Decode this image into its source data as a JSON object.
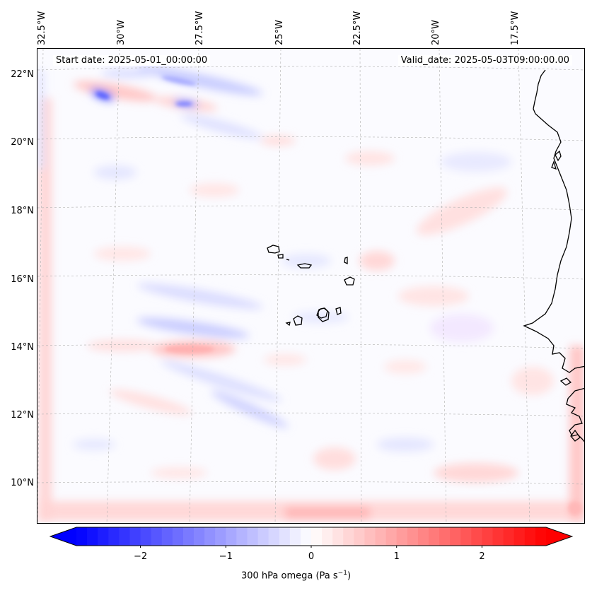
{
  "info": {
    "start_date": "Start date: 2025-05-01_00:00:00",
    "valid_date": "Valid_date: 2025-05-03T09:00:00.00"
  },
  "lon_labels": [
    "32.5°W",
    "30°W",
    "27.5°W",
    "25°W",
    "22.5°W",
    "20°W",
    "17.5°W"
  ],
  "lat_labels": [
    "22°N",
    "20°N",
    "18°N",
    "16°N",
    "14°N",
    "12°N",
    "10°N"
  ],
  "colorbar": {
    "ticks": [
      "−2",
      "−1",
      "0",
      "1",
      "2"
    ],
    "label_main": "300 hPa omega (Pa s",
    "label_sup": "−1",
    "label_end": ")",
    "min": -2.75,
    "max": 2.75,
    "colors": {
      "negative": "#0000ff",
      "zero": "#ffffff",
      "positive": "#ff0000"
    }
  },
  "map": {
    "extent": {
      "lon_min": -32.6,
      "lon_max": -16.5,
      "lat_min": 8.9,
      "lat_max": 22.8
    },
    "features": [
      "coastline-west-africa",
      "cape-verde-islands"
    ]
  }
}
